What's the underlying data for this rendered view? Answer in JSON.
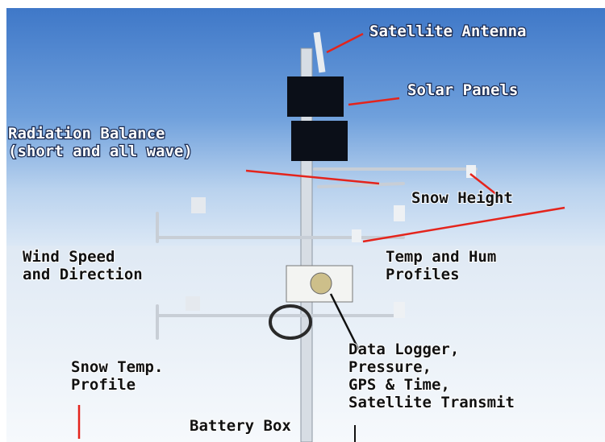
{
  "labels": [
    {
      "lines": [
        "Satellite Antenna"
      ],
      "color": "#ffffff"
    },
    {
      "lines": [
        "Solar Panels"
      ],
      "color": "#ffffff"
    },
    {
      "lines": [
        "Radiation Balance",
        "(short and all wave)"
      ],
      "color": "#ffffff"
    },
    {
      "lines": [
        "Snow Height"
      ],
      "color": "#111111"
    },
    {
      "lines": [
        "Wind Speed",
        "and Direction"
      ],
      "color": "#111111"
    },
    {
      "lines": [
        "Temp and Hum",
        "Profiles"
      ],
      "color": "#111111"
    },
    {
      "lines": [
        "Data Logger,",
        "Pressure,",
        "GPS & Time,",
        "Satellite Transmit"
      ],
      "color": "#111111"
    },
    {
      "lines": [
        "Snow Temp.",
        "Profile"
      ],
      "color": "#111111"
    },
    {
      "lines": [
        "Battery Box"
      ],
      "color": "#111111"
    }
  ]
}
